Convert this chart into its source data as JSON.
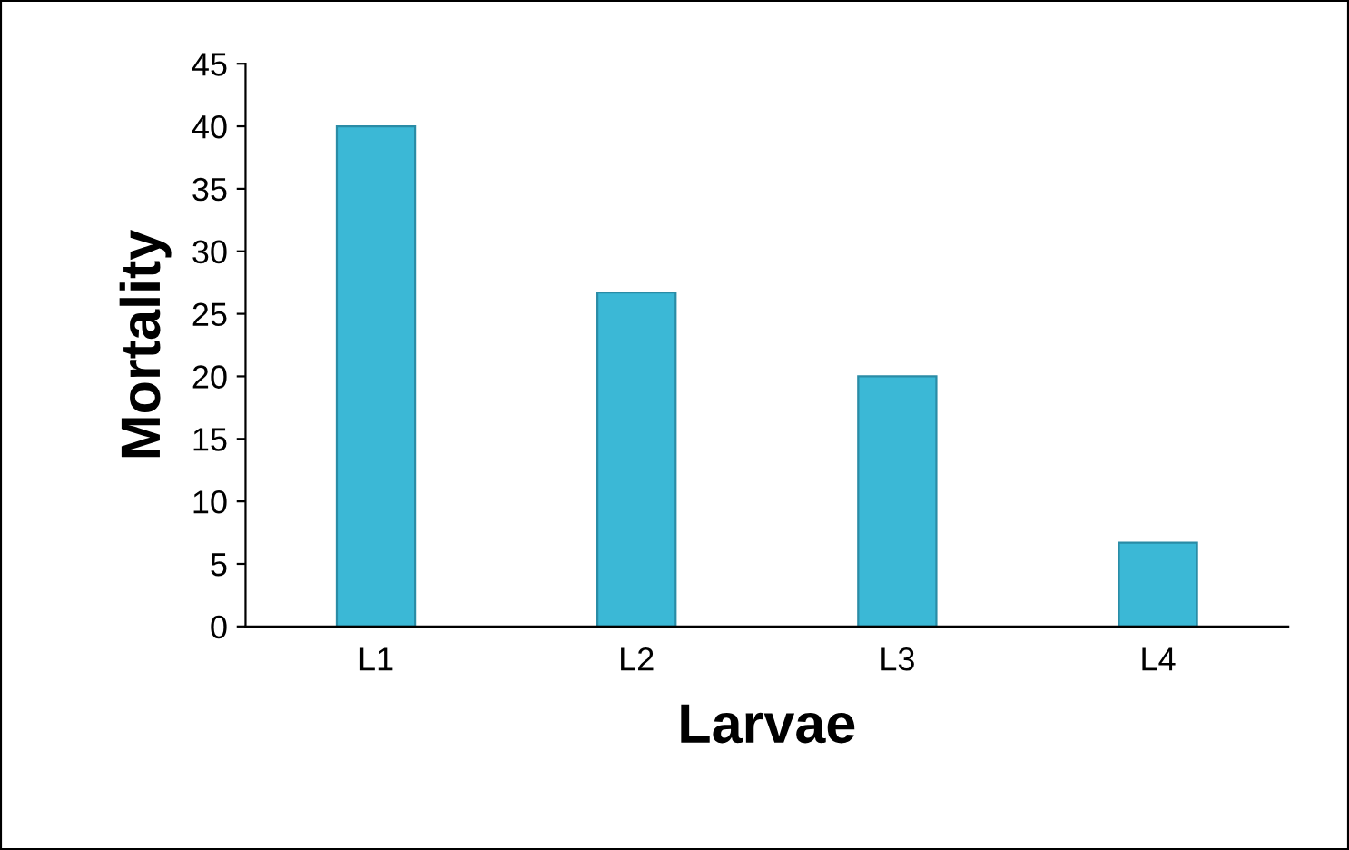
{
  "chart_data": {
    "type": "bar",
    "xlabel": "Larvae",
    "ylabel": "Mortality",
    "categories": [
      "L1",
      "L2",
      "L3",
      "L4"
    ],
    "values": [
      40,
      26.7,
      20,
      6.7
    ],
    "color": "#3bb8d6",
    "ylim": [
      0,
      45
    ],
    "yticks": [
      0,
      5,
      10,
      15,
      20,
      25,
      30,
      35,
      40,
      45
    ],
    "grid": false
  }
}
